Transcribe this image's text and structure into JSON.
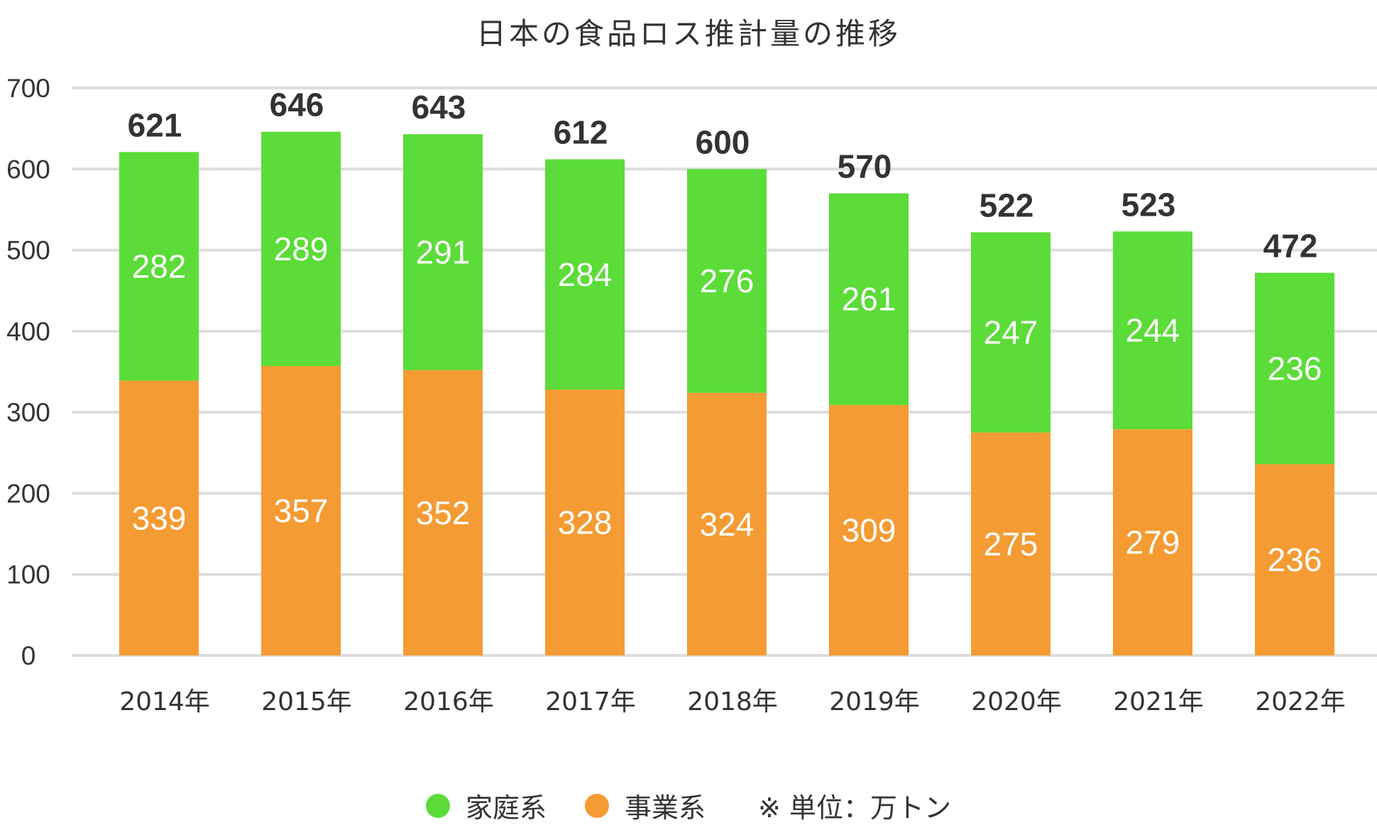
{
  "chart_data": {
    "type": "bar",
    "stacked": true,
    "title": "日本の食品ロス推計量の推移",
    "categories": [
      "2014年",
      "2015年",
      "2016年",
      "2017年",
      "2018年",
      "2019年",
      "2020年",
      "2021年",
      "2022年"
    ],
    "series": [
      {
        "name": "事業系",
        "color": "#F59B33",
        "values": [
          339,
          357,
          352,
          328,
          324,
          309,
          275,
          279,
          236
        ]
      },
      {
        "name": "家庭系",
        "color": "#5BDC38",
        "values": [
          282,
          289,
          291,
          284,
          276,
          261,
          247,
          244,
          236
        ]
      }
    ],
    "totals": [
      621,
      646,
      643,
      612,
      600,
      570,
      522,
      523,
      472
    ],
    "yticks": [
      "0",
      "100",
      "200",
      "300",
      "400",
      "500",
      "600",
      "700"
    ],
    "ylim": [
      0,
      700
    ],
    "grid": true,
    "legend_position": "bottom",
    "legend": [
      {
        "label": "家庭系",
        "color": "#5BDC38"
      },
      {
        "label": "事業系",
        "color": "#F59B33"
      }
    ],
    "unit_note": "※ 単位：万トン"
  }
}
